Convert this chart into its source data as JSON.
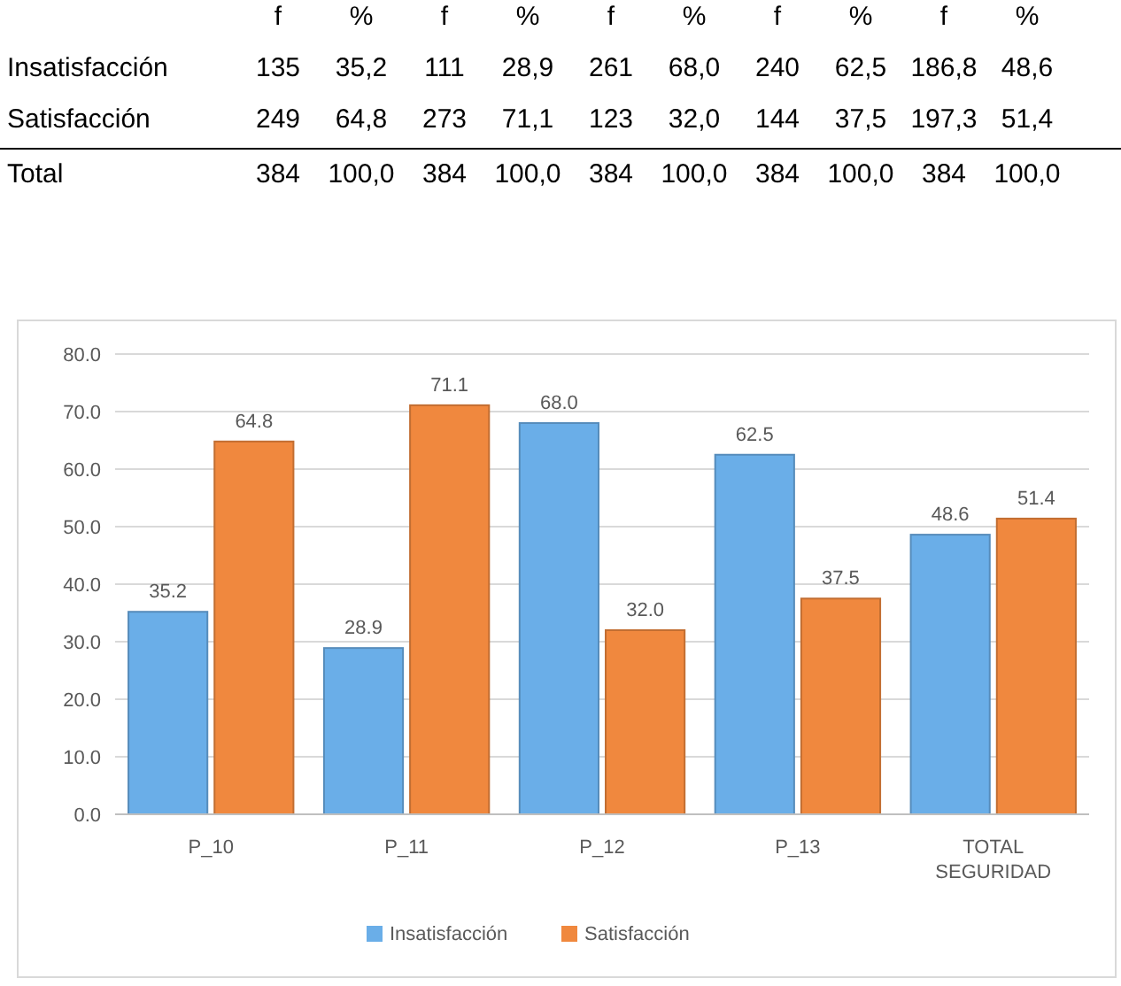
{
  "chart_data": [
    {
      "type": "other",
      "categories": [
        "f",
        "%",
        "f",
        "%",
        "f",
        "%",
        "f",
        "%",
        "f",
        "%"
      ],
      "y_categories": [
        "Insatisfacción",
        "Satisfacción",
        "Total"
      ],
      "cell_labels": [
        [
          "135",
          "35,2",
          "111",
          "28,9",
          "261",
          "68,0",
          "240",
          "62,5",
          "186,8",
          "48,6"
        ],
        [
          "249",
          "64,8",
          "273",
          "71,1",
          "123",
          "32,0",
          "144",
          "37,5",
          "197,3",
          "51,4"
        ],
        [
          "384",
          "100,0",
          "384",
          "100,0",
          "384",
          "100,0",
          "384",
          "100,0",
          "384",
          "100,0"
        ]
      ]
    },
    {
      "type": "bar",
      "categories": [
        "P_10",
        "P_11",
        "P_12",
        "P_13",
        "TOTAL SEGURIDAD"
      ],
      "series": [
        {
          "name": "Insatisfacción",
          "color": "#6aaee8",
          "values": [
            35.2,
            28.9,
            68.0,
            62.5,
            48.6
          ],
          "value_labels": [
            "35.2",
            "28.9",
            "68.0",
            "62.5",
            "48.6"
          ]
        },
        {
          "name": "Satisfacción",
          "color": "#f0883e",
          "values": [
            64.8,
            71.1,
            32.0,
            37.5,
            51.4
          ],
          "value_labels": [
            "64.8",
            "71.1",
            "32.0",
            "37.5",
            "51.4"
          ]
        }
      ],
      "ylim": [
        0,
        80
      ],
      "yticks": [
        {
          "value": 0,
          "label": "0.0"
        },
        {
          "value": 10,
          "label": "10.0"
        },
        {
          "value": 20,
          "label": "20.0"
        },
        {
          "value": 30,
          "label": "30.0"
        },
        {
          "value": 40,
          "label": "40.0"
        },
        {
          "value": 50,
          "label": "50.0"
        },
        {
          "value": 60,
          "label": "60.0"
        },
        {
          "value": 70,
          "label": "70.0"
        },
        {
          "value": 80,
          "label": "80.0"
        }
      ],
      "grid": "y",
      "legend": "bottom"
    }
  ]
}
